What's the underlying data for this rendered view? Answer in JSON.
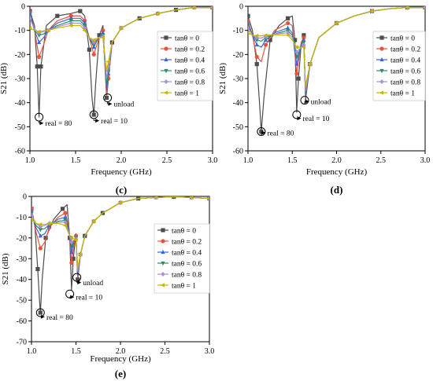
{
  "legend_entries": [
    "tanθ = 0",
    "tanθ = 0.2",
    "tanθ = 0.4",
    "tanθ = 0.6",
    "tanθ = 0.8",
    "tanθ = 1"
  ],
  "series_colors": [
    "#4d4d4d",
    "#e8533a",
    "#3b67d8",
    "#2e8b63",
    "#a98ddc",
    "#c8b400"
  ],
  "marker_shapes": [
    "square",
    "circle",
    "triangle-up",
    "triangle-down",
    "diamond",
    "triangle-left"
  ],
  "chart_data": [
    {
      "id": "c",
      "panel_label": "(c)",
      "type": "line",
      "xlabel": "Frequency (GHz)",
      "ylabel": "S21 (dB)",
      "xlim": [
        1.0,
        3.0
      ],
      "ylim": [
        -60,
        0
      ],
      "xticks": [
        "1.0",
        "1.5",
        "2.0",
        "2.5",
        "3.0"
      ],
      "yticks": [
        "0",
        "-10",
        "-20",
        "-30",
        "-40",
        "-50",
        "-60"
      ],
      "annotations": [
        "real = 80",
        "real = 10",
        "unload"
      ],
      "series": [
        {
          "name": "tanθ = 0",
          "x": [
            1.0,
            1.05,
            1.08,
            1.1,
            1.12,
            1.18,
            1.3,
            1.45,
            1.55,
            1.6,
            1.65,
            1.68,
            1.7,
            1.72,
            1.76,
            1.8,
            1.84,
            1.86,
            1.9,
            2.0,
            2.2,
            2.4,
            2.6,
            2.8,
            3.0
          ],
          "y": [
            -2,
            -8,
            -25,
            -46,
            -25,
            -8,
            -4,
            -3,
            -2,
            -4,
            -18,
            -38,
            -45,
            -32,
            -12,
            -8,
            -38,
            -30,
            -15,
            -9,
            -5,
            -3,
            -1.5,
            -0.5,
            -0.5
          ]
        },
        {
          "name": "tanθ = 0.2",
          "x": [
            1.0,
            1.05,
            1.1,
            1.15,
            1.2,
            1.3,
            1.45,
            1.55,
            1.6,
            1.65,
            1.7,
            1.75,
            1.8,
            1.84,
            1.86,
            1.9,
            2.0,
            2.2,
            2.4,
            2.6,
            2.8,
            3.0
          ],
          "y": [
            -2.5,
            -10,
            -21,
            -16,
            -10,
            -6,
            -4,
            -4,
            -6,
            -13,
            -20,
            -14,
            -10,
            -37,
            -30,
            -15,
            -9,
            -5,
            -3,
            -1.5,
            -0.5,
            -0.5
          ]
        },
        {
          "name": "tanθ = 0.4",
          "x": [
            1.0,
            1.05,
            1.1,
            1.15,
            1.2,
            1.3,
            1.45,
            1.55,
            1.6,
            1.65,
            1.7,
            1.75,
            1.8,
            1.84,
            1.86,
            1.9,
            2.0,
            2.2,
            2.4,
            2.6,
            2.8,
            3.0
          ],
          "y": [
            -3,
            -10,
            -15,
            -13,
            -10,
            -7,
            -5,
            -5,
            -7,
            -13,
            -17,
            -13,
            -11,
            -35,
            -28,
            -15,
            -9,
            -5,
            -3,
            -1.5,
            -0.5,
            -0.5
          ]
        },
        {
          "name": "tanθ = 0.6",
          "x": [
            1.0,
            1.05,
            1.1,
            1.15,
            1.2,
            1.3,
            1.45,
            1.55,
            1.6,
            1.65,
            1.7,
            1.75,
            1.8,
            1.84,
            1.86,
            1.9,
            2.0,
            2.2,
            2.4,
            2.6,
            2.8,
            3.0
          ],
          "y": [
            -4,
            -10,
            -12,
            -11.5,
            -10,
            -8,
            -6,
            -6,
            -8,
            -13,
            -16,
            -13,
            -12,
            -33,
            -27,
            -15,
            -9,
            -5,
            -3,
            -1.5,
            -0.5,
            -0.5
          ]
        },
        {
          "name": "tanθ = 0.8",
          "x": [
            1.0,
            1.05,
            1.1,
            1.15,
            1.2,
            1.3,
            1.45,
            1.55,
            1.6,
            1.65,
            1.7,
            1.75,
            1.8,
            1.84,
            1.86,
            1.9,
            2.0,
            2.2,
            2.4,
            2.6,
            2.8,
            3.0
          ],
          "y": [
            -5,
            -9.5,
            -11,
            -10.5,
            -10,
            -8.5,
            -7,
            -7,
            -9,
            -13,
            -15,
            -13,
            -12.5,
            -30,
            -25,
            -15,
            -9,
            -5,
            -3,
            -1.5,
            -0.5,
            -0.5
          ]
        },
        {
          "name": "tanθ = 1",
          "x": [
            1.0,
            1.05,
            1.1,
            1.15,
            1.2,
            1.3,
            1.45,
            1.55,
            1.6,
            1.65,
            1.7,
            1.75,
            1.8,
            1.84,
            1.86,
            1.9,
            2.0,
            2.2,
            2.4,
            2.6,
            2.8,
            3.0
          ],
          "y": [
            -9,
            -10,
            -10.5,
            -10.2,
            -10,
            -9,
            -8,
            -8,
            -10,
            -13,
            -14,
            -13,
            -13,
            -27,
            -23,
            -15,
            -9,
            -5,
            -3,
            -1.5,
            -0.5,
            -0.5
          ]
        }
      ]
    },
    {
      "id": "d",
      "panel_label": "(d)",
      "type": "line",
      "xlabel": "Frequency (GHz)",
      "ylabel": "S21 (dB)",
      "xlim": [
        1.0,
        3.0
      ],
      "ylim": [
        -60,
        0
      ],
      "xticks": [
        "1.0",
        "1.5",
        "2.0",
        "2.5",
        "3.0"
      ],
      "yticks": [
        "0",
        "-10",
        "-20",
        "-30",
        "-40",
        "-50",
        "-60"
      ],
      "annotations": [
        "real = 80",
        "real = 10",
        "unload"
      ],
      "series": [
        {
          "name": "tanθ = 0",
          "x": [
            1.0,
            1.05,
            1.1,
            1.13,
            1.15,
            1.18,
            1.25,
            1.35,
            1.45,
            1.5,
            1.53,
            1.55,
            1.57,
            1.6,
            1.63,
            1.65,
            1.7,
            1.8,
            2.0,
            2.2,
            2.4,
            2.6,
            2.8,
            3.0
          ],
          "y": [
            -4,
            -10,
            -24,
            -40,
            -52,
            -38,
            -14,
            -8,
            -5,
            -4,
            -14,
            -44,
            -30,
            -16,
            -12,
            -39,
            -24,
            -13,
            -7,
            -4,
            -2,
            -1,
            -0.5,
            -0.5
          ]
        },
        {
          "name": "tanθ = 0.2",
          "x": [
            1.0,
            1.05,
            1.1,
            1.15,
            1.2,
            1.3,
            1.45,
            1.5,
            1.55,
            1.6,
            1.63,
            1.65,
            1.7,
            1.8,
            2.0,
            2.2,
            2.4,
            2.6,
            2.8,
            3.0
          ],
          "y": [
            -6,
            -12,
            -21,
            -23,
            -16,
            -10,
            -7,
            -8,
            -28,
            -15,
            -13,
            -38,
            -24,
            -13,
            -7,
            -4,
            -2,
            -1,
            -0.5,
            -0.5
          ]
        },
        {
          "name": "tanθ = 0.4",
          "x": [
            1.0,
            1.05,
            1.1,
            1.15,
            1.2,
            1.3,
            1.45,
            1.5,
            1.55,
            1.6,
            1.63,
            1.65,
            1.7,
            1.8,
            2.0,
            2.2,
            2.4,
            2.6,
            2.8,
            3.0
          ],
          "y": [
            -7,
            -12,
            -16,
            -17,
            -14,
            -11,
            -9,
            -11,
            -24,
            -16,
            -14,
            -37,
            -24,
            -13,
            -7,
            -4,
            -2,
            -1,
            -0.5,
            -0.5
          ]
        },
        {
          "name": "tanθ = 0.6",
          "x": [
            1.0,
            1.05,
            1.1,
            1.15,
            1.2,
            1.3,
            1.45,
            1.5,
            1.55,
            1.6,
            1.63,
            1.65,
            1.7,
            1.8,
            2.0,
            2.2,
            2.4,
            2.6,
            2.8,
            3.0
          ],
          "y": [
            -8,
            -12,
            -14,
            -14.5,
            -13,
            -11.5,
            -10,
            -12,
            -21,
            -17,
            -15,
            -36,
            -24,
            -13,
            -7,
            -4,
            -2,
            -1,
            -0.5,
            -0.5
          ]
        },
        {
          "name": "tanθ = 0.8",
          "x": [
            1.0,
            1.05,
            1.1,
            1.15,
            1.2,
            1.3,
            1.45,
            1.5,
            1.55,
            1.6,
            1.63,
            1.65,
            1.7,
            1.8,
            2.0,
            2.2,
            2.4,
            2.6,
            2.8,
            3.0
          ],
          "y": [
            -9,
            -12,
            -13,
            -13.2,
            -12.5,
            -11.5,
            -11,
            -13,
            -19,
            -17,
            -16,
            -35,
            -24,
            -13,
            -7,
            -4,
            -2,
            -1,
            -0.5,
            -0.5
          ]
        },
        {
          "name": "tanθ = 1",
          "x": [
            1.0,
            1.05,
            1.1,
            1.15,
            1.2,
            1.3,
            1.45,
            1.5,
            1.55,
            1.6,
            1.63,
            1.65,
            1.7,
            1.8,
            2.0,
            2.2,
            2.4,
            2.6,
            2.8,
            3.0
          ],
          "y": [
            -11,
            -12,
            -12.2,
            -12.3,
            -12,
            -11.8,
            -12,
            -14,
            -17,
            -17,
            -17,
            -33,
            -24,
            -13,
            -7,
            -4,
            -2,
            -1,
            -0.5,
            -0.5
          ]
        }
      ]
    },
    {
      "id": "e",
      "panel_label": "(e)",
      "type": "line",
      "xlabel": "Frequency (GHz)",
      "ylabel": "S21 (dB)",
      "xlim": [
        1.0,
        3.0
      ],
      "ylim": [
        -70,
        0
      ],
      "xticks": [
        "1.0",
        "1.5",
        "2.0",
        "2.5",
        "3.0"
      ],
      "yticks": [
        "0",
        "-10",
        "-20",
        "-30",
        "-40",
        "-50",
        "-60",
        "-70"
      ],
      "annotations": [
        "real = 80",
        "real = 10",
        "unload"
      ],
      "series": [
        {
          "name": "tanθ = 0",
          "x": [
            1.0,
            1.04,
            1.07,
            1.09,
            1.1,
            1.12,
            1.16,
            1.25,
            1.35,
            1.4,
            1.43,
            1.45,
            1.47,
            1.5,
            1.52,
            1.55,
            1.6,
            1.7,
            1.8,
            2.0,
            2.2,
            2.4,
            2.6,
            2.8,
            3.0
          ],
          "y": [
            -6,
            -15,
            -35,
            -50,
            -56,
            -40,
            -20,
            -11,
            -6,
            -4,
            -20,
            -45,
            -30,
            -18,
            -40,
            -28,
            -19,
            -12,
            -8,
            -3,
            -1,
            -0.5,
            -0.2,
            -0.5,
            -1
          ]
        },
        {
          "name": "tanθ = 0.2",
          "x": [
            1.0,
            1.05,
            1.1,
            1.15,
            1.2,
            1.3,
            1.38,
            1.42,
            1.45,
            1.48,
            1.5,
            1.52,
            1.55,
            1.6,
            1.7,
            1.8,
            2.0,
            2.2,
            2.4,
            2.6,
            2.8,
            3.0
          ],
          "y": [
            -6,
            -17,
            -25,
            -22,
            -15,
            -10,
            -8,
            -15,
            -32,
            -22,
            -19,
            -39,
            -28,
            -19,
            -12,
            -8,
            -3,
            -1,
            -0.5,
            -0.2,
            -0.5,
            -1
          ]
        },
        {
          "name": "tanθ = 0.4",
          "x": [
            1.0,
            1.05,
            1.1,
            1.15,
            1.2,
            1.3,
            1.38,
            1.42,
            1.45,
            1.48,
            1.5,
            1.52,
            1.55,
            1.6,
            1.7,
            1.8,
            2.0,
            2.2,
            2.4,
            2.6,
            2.8,
            3.0
          ],
          "y": [
            -7,
            -15,
            -19,
            -18,
            -14,
            -11,
            -10,
            -16,
            -27,
            -21,
            -20,
            -38,
            -28,
            -19,
            -12,
            -8,
            -3,
            -1,
            -0.5,
            -0.2,
            -0.5,
            -1
          ]
        },
        {
          "name": "tanθ = 0.6",
          "x": [
            1.0,
            1.05,
            1.1,
            1.15,
            1.2,
            1.3,
            1.38,
            1.42,
            1.45,
            1.48,
            1.5,
            1.52,
            1.55,
            1.6,
            1.7,
            1.8,
            2.0,
            2.2,
            2.4,
            2.6,
            2.8,
            3.0
          ],
          "y": [
            -8,
            -14,
            -16,
            -15.5,
            -13.5,
            -12,
            -11.5,
            -17,
            -24,
            -21,
            -20,
            -37,
            -28,
            -19,
            -12,
            -8,
            -3,
            -1,
            -0.5,
            -0.2,
            -0.5,
            -1
          ]
        },
        {
          "name": "tanθ = 0.8",
          "x": [
            1.0,
            1.05,
            1.1,
            1.15,
            1.2,
            1.3,
            1.38,
            1.42,
            1.45,
            1.48,
            1.5,
            1.52,
            1.55,
            1.6,
            1.7,
            1.8,
            2.0,
            2.2,
            2.4,
            2.6,
            2.8,
            3.0
          ],
          "y": [
            -9,
            -13,
            -14.5,
            -14,
            -13,
            -12.5,
            -12.5,
            -17.5,
            -22,
            -21,
            -20.5,
            -36,
            -28,
            -19,
            -12,
            -8,
            -3,
            -1,
            -0.5,
            -0.2,
            -0.5,
            -1
          ]
        },
        {
          "name": "tanθ = 1",
          "x": [
            1.0,
            1.05,
            1.1,
            1.15,
            1.2,
            1.3,
            1.38,
            1.42,
            1.45,
            1.48,
            1.5,
            1.52,
            1.55,
            1.6,
            1.7,
            1.8,
            2.0,
            2.2,
            2.4,
            2.6,
            2.8,
            3.0
          ],
          "y": [
            -11,
            -13,
            -13.5,
            -13.5,
            -13,
            -13,
            -14,
            -18,
            -20,
            -20.5,
            -21,
            -34,
            -28,
            -19,
            -12,
            -8,
            -3,
            -1,
            -0.5,
            -0.2,
            -0.5,
            -1
          ]
        }
      ]
    }
  ]
}
